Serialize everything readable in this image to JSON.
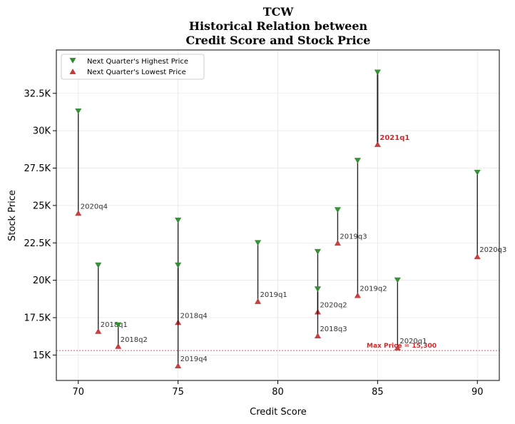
{
  "chart_data": {
    "type": "scatter",
    "title_lines": [
      "TCW",
      "Historical Relation between",
      "Credit Score and Stock Price"
    ],
    "xlabel": "Credit Score",
    "ylabel": "Stock Price",
    "xlim": [
      68.9,
      91.1
    ],
    "ylim": [
      13300,
      35400
    ],
    "x_ticks": [
      70,
      75,
      80,
      85,
      90
    ],
    "x_tick_labels": [
      "70",
      "75",
      "80",
      "85",
      "90"
    ],
    "y_ticks": [
      15000,
      17500,
      20000,
      22500,
      25000,
      27500,
      30000,
      32500
    ],
    "y_tick_labels": [
      "15K",
      "17.5K",
      "20K",
      "22.5K",
      "25K",
      "27.5K",
      "30K",
      "32.5K"
    ],
    "grid": true,
    "legend_position": "top-left",
    "series": [
      {
        "name": "Next Quarter's Highest Price",
        "color": "#2e8b2e",
        "marker": "triangle-down"
      },
      {
        "name": "Next Quarter's Lowest Price",
        "color": "#c0393b",
        "marker": "triangle-up"
      }
    ],
    "points": [
      {
        "label": "2020q4",
        "x": 70,
        "high": 31300,
        "low": 24500,
        "highlight": false
      },
      {
        "label": "2018q1",
        "x": 71,
        "high": 21000,
        "low": 16600,
        "highlight": false
      },
      {
        "label": "2018q2",
        "x": 72,
        "high": 17000,
        "low": 15600,
        "highlight": false
      },
      {
        "label": "2018q4",
        "x": 75,
        "high": 24000,
        "low": 17200,
        "highlight": false
      },
      {
        "label": "2019q4",
        "x": 75,
        "high": 21000,
        "low": 14300,
        "highlight": false
      },
      {
        "label": "2019q1",
        "x": 79,
        "high": 22500,
        "low": 18600,
        "highlight": false
      },
      {
        "label": "2020q2",
        "x": 82,
        "high": 21900,
        "low": 17900,
        "highlight": false
      },
      {
        "label": "2018q3",
        "x": 82,
        "high": 19400,
        "low": 16300,
        "highlight": false
      },
      {
        "label": "2019q3",
        "x": 83,
        "high": 24700,
        "low": 22500,
        "highlight": false
      },
      {
        "label": "2019q2",
        "x": 84,
        "high": 28000,
        "low": 19000,
        "highlight": false
      },
      {
        "label": "2021q1",
        "x": 85,
        "high": 33900,
        "low": 29100,
        "highlight": true
      },
      {
        "label": "2020q1",
        "x": 86,
        "high": 20000,
        "low": 15500,
        "highlight": false
      },
      {
        "label": "2020q3",
        "x": 90,
        "high": 27200,
        "low": 21600,
        "highlight": false
      }
    ],
    "reference_line": {
      "y": 15300,
      "label": "Max Price = 15,300",
      "color": "#d62728"
    }
  }
}
